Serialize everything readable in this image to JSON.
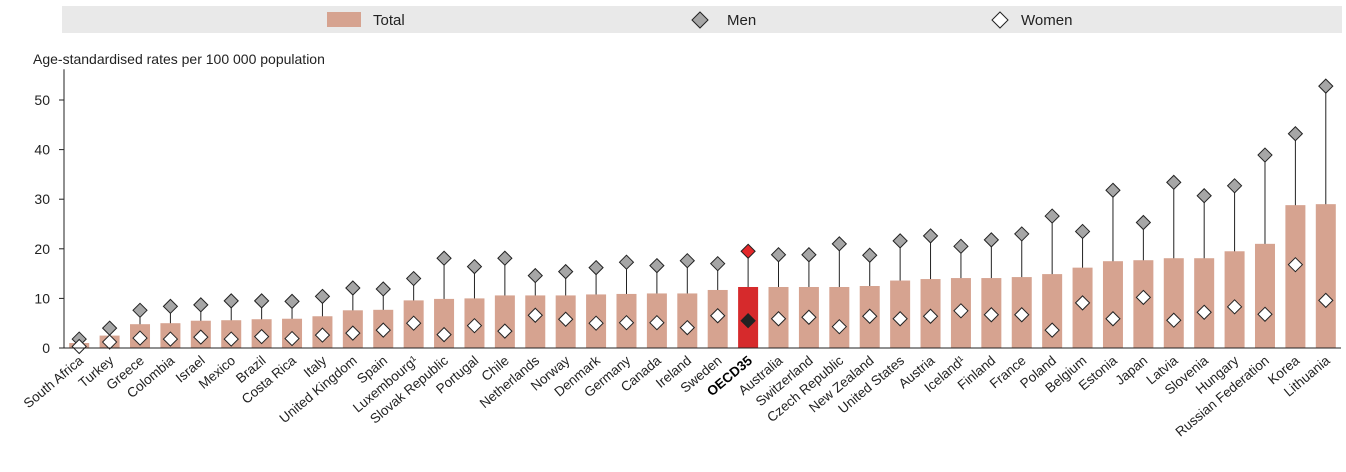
{
  "chart_data": {
    "type": "bar",
    "ylabel": "Age-standardised rates per 100 000 population",
    "ylim": [
      0,
      55
    ],
    "yticks": [
      0,
      10,
      20,
      30,
      40,
      50
    ],
    "grid": false,
    "legend_placement": "top",
    "legend": [
      {
        "label": "Total",
        "marker": "bar"
      },
      {
        "label": "Men",
        "marker": "diamond-grey"
      },
      {
        "label": "Women",
        "marker": "diamond-white"
      }
    ],
    "highlight_category": "OECD35",
    "colors": {
      "bar": "#d6a390",
      "highlight_bar": "#d62a2c",
      "men_marker": "#a6a6a6",
      "women_marker": "#ffffff",
      "highlight_men": "#e3282a",
      "highlight_women": "#222222",
      "legend_band": "#e9e9e9"
    },
    "categories": [
      "South Africa",
      "Turkey",
      "Greece",
      "Colombia",
      "Israel",
      "Mexico",
      "Brazil",
      "Costa Rica",
      "Italy",
      "United Kingdom",
      "Spain",
      "Luxembourg¹",
      "Slovak Republic",
      "Portugal",
      "Chile",
      "Netherlands",
      "Norway",
      "Denmark",
      "Germany",
      "Canada",
      "Ireland",
      "Sweden",
      "OECD35",
      "Australia",
      "Switzerland",
      "Czech Republic",
      "New Zealand",
      "United States",
      "Austria",
      "Iceland¹",
      "Finland",
      "France",
      "Poland",
      "Belgium",
      "Estonia",
      "Japan",
      "Latvia",
      "Slovenia",
      "Hungary",
      "Russian Federation",
      "Korea",
      "Lithuania"
    ],
    "series": [
      {
        "name": "Total",
        "values": [
          1.0,
          2.5,
          4.8,
          5.0,
          5.5,
          5.6,
          5.8,
          5.9,
          6.4,
          7.6,
          7.7,
          9.6,
          9.9,
          10.0,
          10.6,
          10.6,
          10.6,
          10.8,
          10.9,
          11.0,
          11.0,
          11.7,
          12.3,
          12.3,
          12.3,
          12.3,
          12.5,
          13.6,
          13.9,
          14.1,
          14.1,
          14.3,
          14.9,
          16.2,
          17.5,
          17.7,
          18.1,
          18.1,
          19.5,
          21.0,
          28.8,
          29.0
        ]
      },
      {
        "name": "Men",
        "values": [
          1.8,
          4.0,
          7.6,
          8.4,
          8.7,
          9.5,
          9.5,
          9.4,
          10.4,
          12.1,
          11.9,
          14.0,
          18.1,
          16.4,
          18.1,
          14.6,
          15.4,
          16.2,
          17.3,
          16.6,
          17.6,
          17.0,
          19.5,
          18.8,
          18.8,
          21.0,
          18.7,
          21.6,
          22.6,
          20.5,
          21.8,
          23.0,
          26.6,
          23.5,
          31.8,
          25.3,
          33.4,
          30.7,
          32.7,
          38.9,
          43.2,
          52.8
        ]
      },
      {
        "name": "Women",
        "values": [
          0.3,
          1.2,
          2.0,
          1.8,
          2.2,
          1.8,
          2.3,
          1.9,
          2.6,
          3.0,
          3.6,
          5.0,
          2.7,
          4.5,
          3.4,
          6.6,
          5.8,
          5.0,
          5.1,
          5.1,
          4.1,
          6.5,
          5.5,
          5.9,
          6.2,
          4.3,
          6.4,
          5.9,
          6.4,
          7.5,
          6.7,
          6.7,
          3.6,
          9.1,
          5.9,
          10.2,
          5.6,
          7.2,
          8.3,
          6.8,
          16.8,
          9.6
        ]
      }
    ]
  }
}
